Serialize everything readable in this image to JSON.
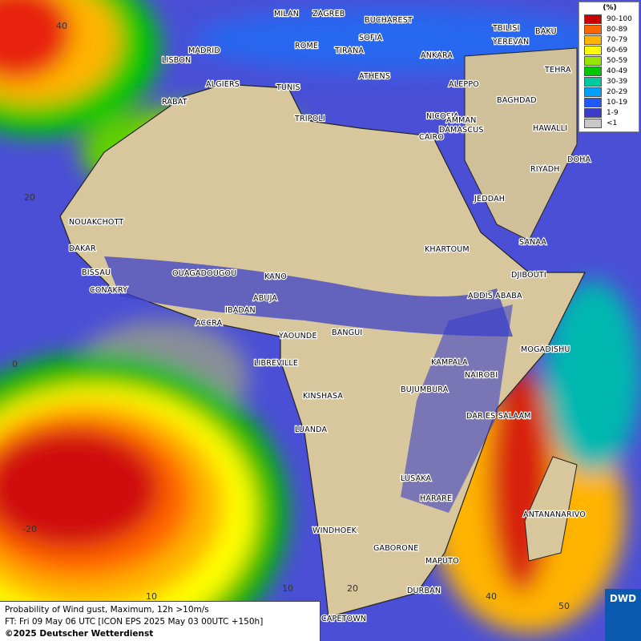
{
  "map": {
    "cities": [
      "MILAN",
      "ZAGREB",
      "BUCHAREST",
      "TBILISI",
      "BAKU",
      "MADRID",
      "ROME",
      "SOFIA",
      "YEREVAN",
      "LISBON",
      "TIRANA",
      "ANKARA",
      "TEHRA",
      "ATHENS",
      "ALGIERS",
      "TUNIS",
      "ALEPPO",
      "RABAT",
      "NICOSIA",
      "BAGHDAD",
      "TRIPOLI",
      "DAMASCUS",
      "AMMAN",
      "HAWALLI",
      "CAIRO",
      "DOHA",
      "RIYADH",
      "JEDDAH",
      "NOUAKCHOTT",
      "DAKAR",
      "KHARTOUM",
      "SANAA",
      "BISSAU",
      "OUAGADOUGOU",
      "KANO",
      "DJIBOUTI",
      "CONAKRY",
      "ABUJA",
      "ADDIS ABABA",
      "IBADAN",
      "ACCRA",
      "YAOUNDE",
      "BANGUI",
      "MOGADISHU",
      "LIBREVILLE",
      "KAMPALA",
      "NAIROBI",
      "KINSHASA",
      "BUJUMBURA",
      "DAR ES SALAAM",
      "LUANDA",
      "LUSAKA",
      "HARARE",
      "ANTANANARIVO",
      "WINDHOEK",
      "GABORONE",
      "MAPUTO",
      "DURBAN",
      "CAPETOWN"
    ],
    "grid_labels": [
      "40",
      "20",
      "0",
      "-20",
      "10",
      "10",
      "20",
      "40",
      "50"
    ]
  },
  "legend": {
    "title": "(%)",
    "items": [
      {
        "label": "90-100",
        "color": "#c80000"
      },
      {
        "label": "80-89",
        "color": "#ff6400"
      },
      {
        "label": "70-79",
        "color": "#ffb400"
      },
      {
        "label": "60-69",
        "color": "#ffff00"
      },
      {
        "label": "50-59",
        "color": "#96e600"
      },
      {
        "label": "40-49",
        "color": "#00c800"
      },
      {
        "label": "30-39",
        "color": "#00c8a0"
      },
      {
        "label": "20-29",
        "color": "#00a0ff"
      },
      {
        "label": "10-19",
        "color": "#1e5aff"
      },
      {
        "label": "1-9",
        "color": "#3c3cc8"
      },
      {
        "label": "<1",
        "color": "#c8c8c8"
      }
    ]
  },
  "caption": {
    "line1": "Probability of Wind gust, Maximum, 12h >10m/s",
    "line2": "FT: Fri 09 May 06 UTC [ICON EPS 2025 May 03 00UTC +150h]",
    "line3": "©2025 Deutscher Wetterdienst"
  },
  "logo": "DWD"
}
